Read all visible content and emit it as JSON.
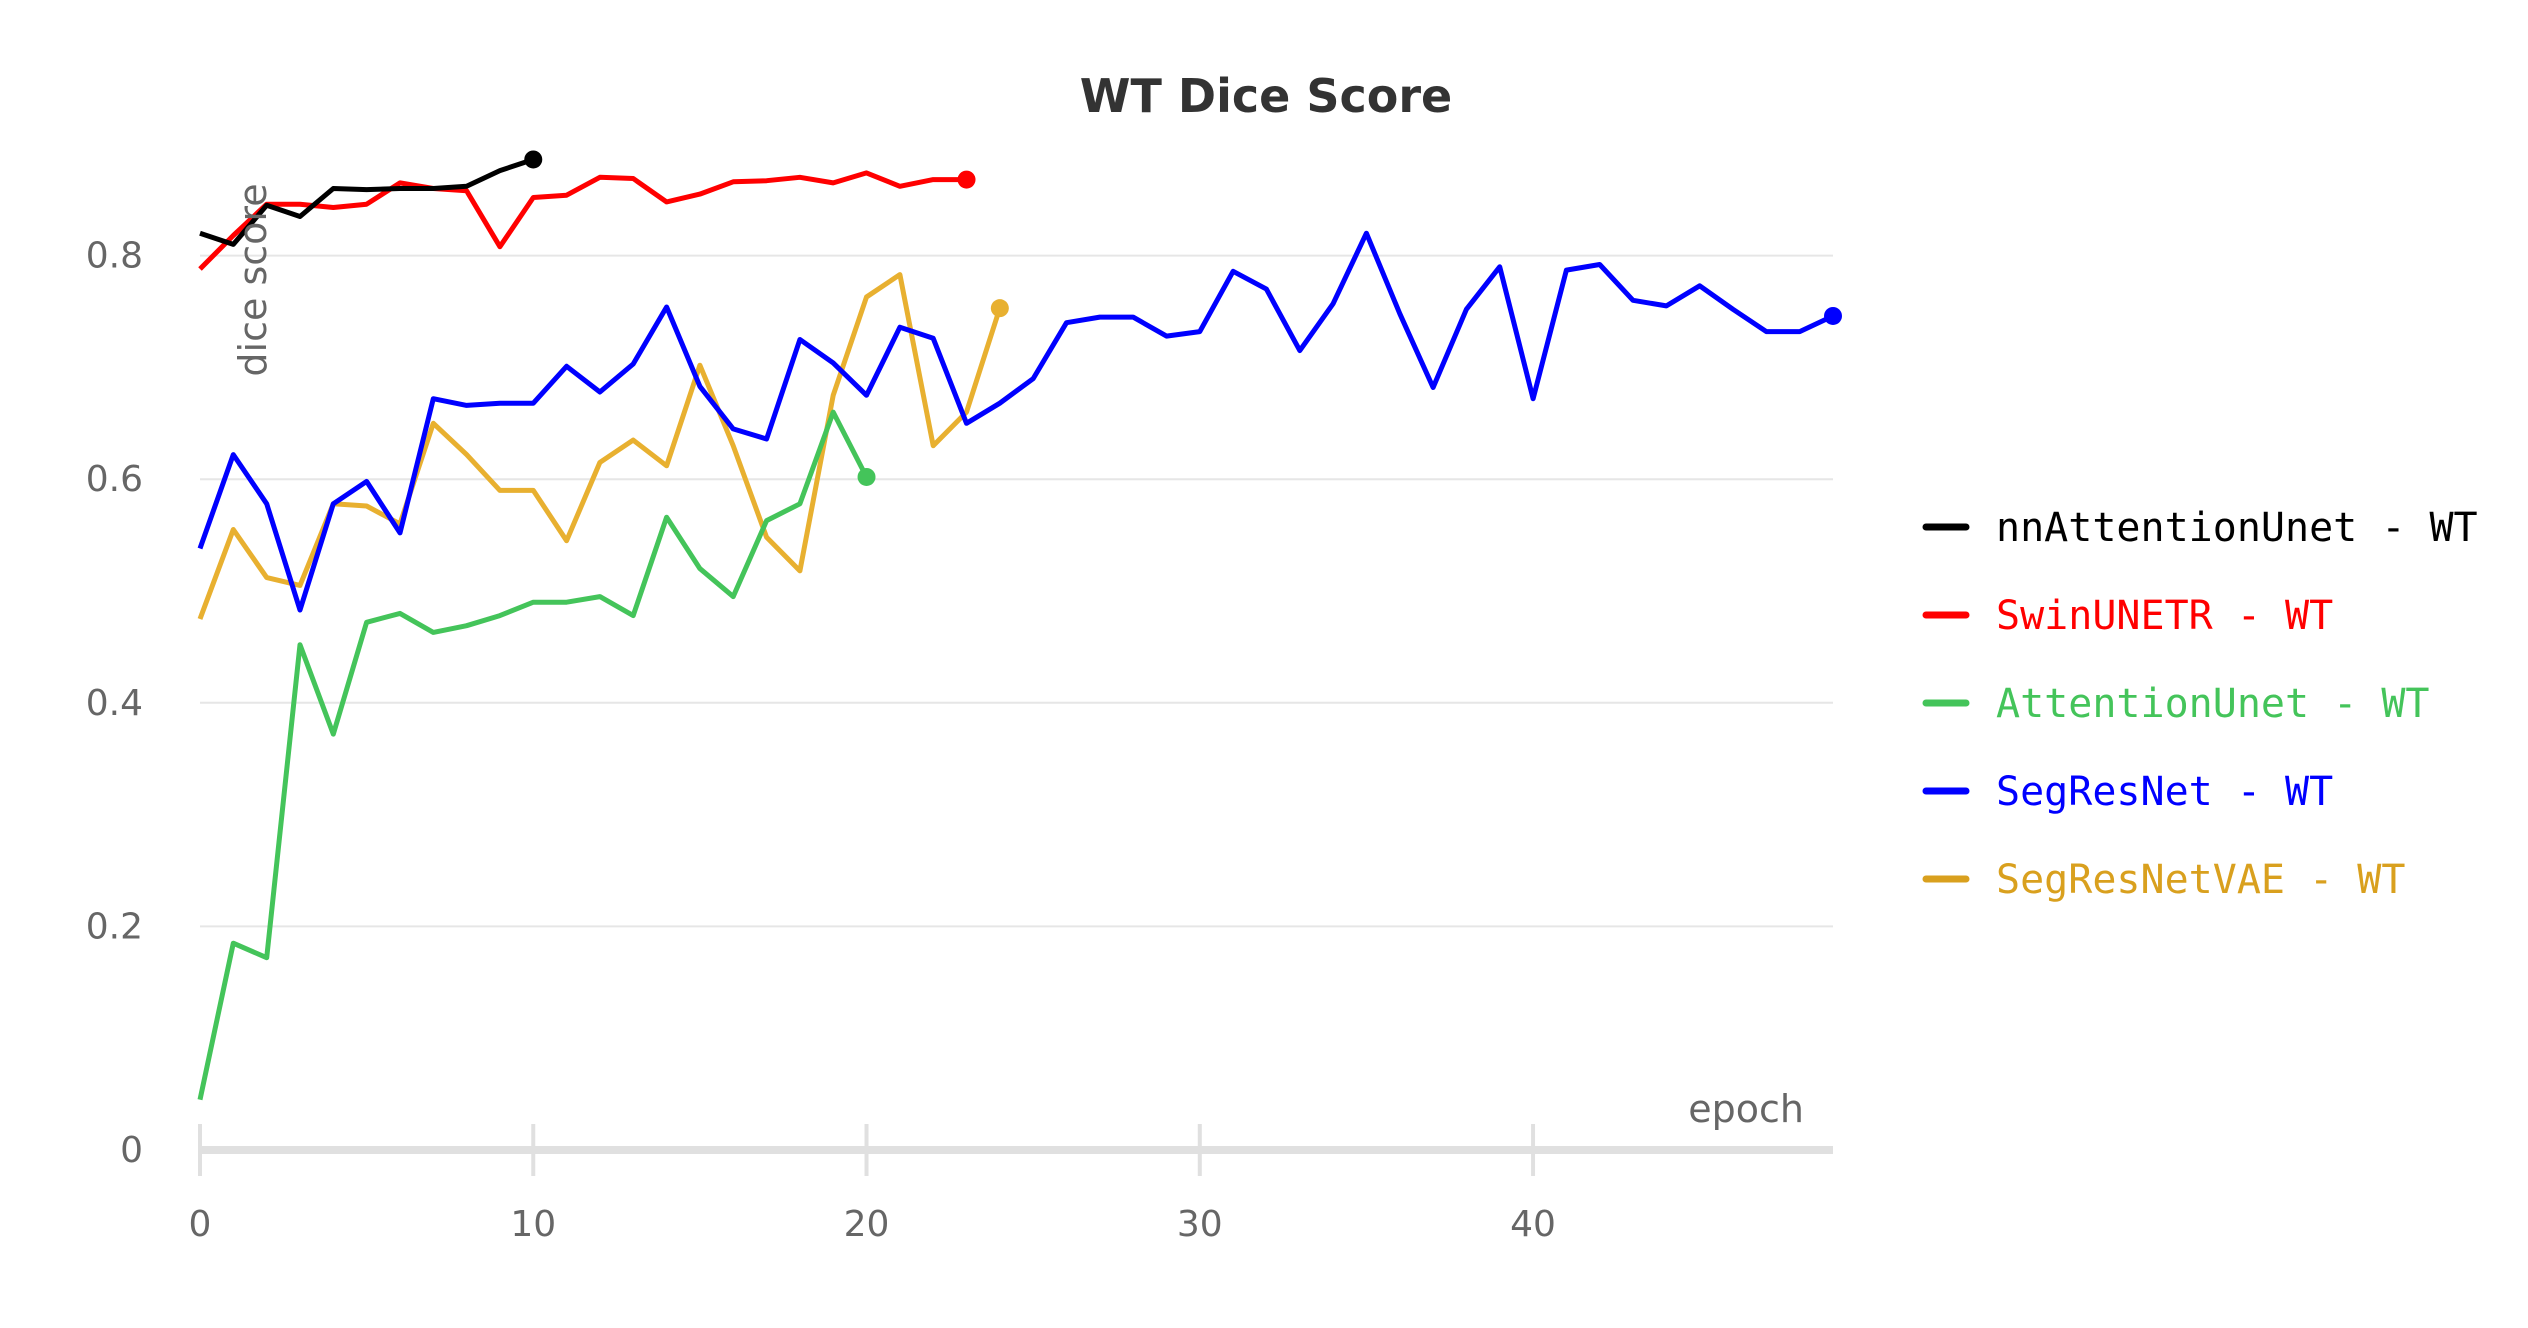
{
  "chart_data": {
    "type": "line",
    "title": "WT Dice Score",
    "xlabel": "epoch",
    "ylabel": "dice score",
    "xlim": [
      0,
      49
    ],
    "ylim": [
      0,
      0.9
    ],
    "xticks": [
      "0",
      "10",
      "20",
      "30",
      "40"
    ],
    "yticks": [
      "0",
      "0.2",
      "0.4",
      "0.6",
      "0.8"
    ],
    "grid": true,
    "legend_position": "right",
    "series": [
      {
        "name": "nnAttentionUnet - WT",
        "color": "#000000",
        "legend_color": "#000000",
        "x": [
          0,
          1,
          2,
          3,
          4,
          5,
          6,
          7,
          8,
          9,
          10
        ],
        "y": [
          0.82,
          0.81,
          0.845,
          0.835,
          0.86,
          0.859,
          0.86,
          0.86,
          0.862,
          0.876,
          0.886
        ]
      },
      {
        "name": "SwinUNETR - WT",
        "color": "#ff0000",
        "legend_color": "#ff0000",
        "x": [
          0,
          1,
          2,
          3,
          4,
          5,
          6,
          7,
          8,
          9,
          10,
          11,
          12,
          13,
          14,
          15,
          16,
          17,
          18,
          19,
          20,
          21,
          22,
          23
        ],
        "y": [
          0.788,
          0.818,
          0.846,
          0.846,
          0.843,
          0.846,
          0.865,
          0.86,
          0.858,
          0.808,
          0.852,
          0.854,
          0.87,
          0.869,
          0.848,
          0.855,
          0.866,
          0.867,
          0.87,
          0.865,
          0.874,
          0.862,
          0.868,
          0.868
        ]
      },
      {
        "name": "AttentionUnet - WT",
        "color": "#44c45a",
        "legend_color": "#44c45a",
        "x": [
          0,
          1,
          2,
          3,
          4,
          5,
          6,
          7,
          8,
          9,
          10,
          11,
          12,
          13,
          14,
          15,
          16,
          17,
          18,
          19,
          20
        ],
        "y": [
          0.045,
          0.185,
          0.172,
          0.452,
          0.372,
          0.472,
          0.48,
          0.463,
          0.469,
          0.478,
          0.49,
          0.49,
          0.495,
          0.478,
          0.566,
          0.52,
          0.495,
          0.563,
          0.578,
          0.66,
          0.602
        ]
      },
      {
        "name": "SegResNet - WT",
        "color": "#0000ff",
        "legend_color": "#0000ff",
        "x": [
          0,
          1,
          2,
          3,
          4,
          5,
          6,
          7,
          8,
          9,
          10,
          11,
          12,
          13,
          14,
          15,
          16,
          17,
          18,
          19,
          20,
          21,
          22,
          23,
          24,
          25,
          26,
          27,
          28,
          29,
          30,
          31,
          32,
          33,
          34,
          35,
          36,
          37,
          38,
          39,
          40,
          41,
          42,
          43,
          44,
          45,
          46,
          47,
          48,
          49
        ],
        "y": [
          0.538,
          0.622,
          0.578,
          0.483,
          0.578,
          0.598,
          0.552,
          0.672,
          0.666,
          0.668,
          0.668,
          0.701,
          0.678,
          0.703,
          0.754,
          0.683,
          0.645,
          0.636,
          0.725,
          0.704,
          0.675,
          0.736,
          0.726,
          0.65,
          0.668,
          0.69,
          0.74,
          0.745,
          0.745,
          0.728,
          0.732,
          0.786,
          0.77,
          0.715,
          0.757,
          0.82,
          0.748,
          0.682,
          0.752,
          0.79,
          0.672,
          0.787,
          0.792,
          0.76,
          0.755,
          0.773,
          0.752,
          0.732,
          0.732,
          0.746
        ]
      },
      {
        "name": "SegResNetVAE - WT",
        "color": "#e8b030",
        "legend_color": "#d9a01e",
        "x": [
          0,
          1,
          2,
          3,
          4,
          5,
          6,
          7,
          8,
          9,
          10,
          11,
          12,
          13,
          14,
          15,
          16,
          17,
          18,
          19,
          20,
          21,
          22,
          23,
          24
        ],
        "y": [
          0.475,
          0.555,
          0.512,
          0.505,
          0.578,
          0.576,
          0.56,
          0.65,
          0.622,
          0.59,
          0.59,
          0.545,
          0.615,
          0.635,
          0.612,
          0.702,
          0.63,
          0.548,
          0.518,
          0.675,
          0.763,
          0.783,
          0.63,
          0.66,
          0.753
        ]
      }
    ]
  }
}
